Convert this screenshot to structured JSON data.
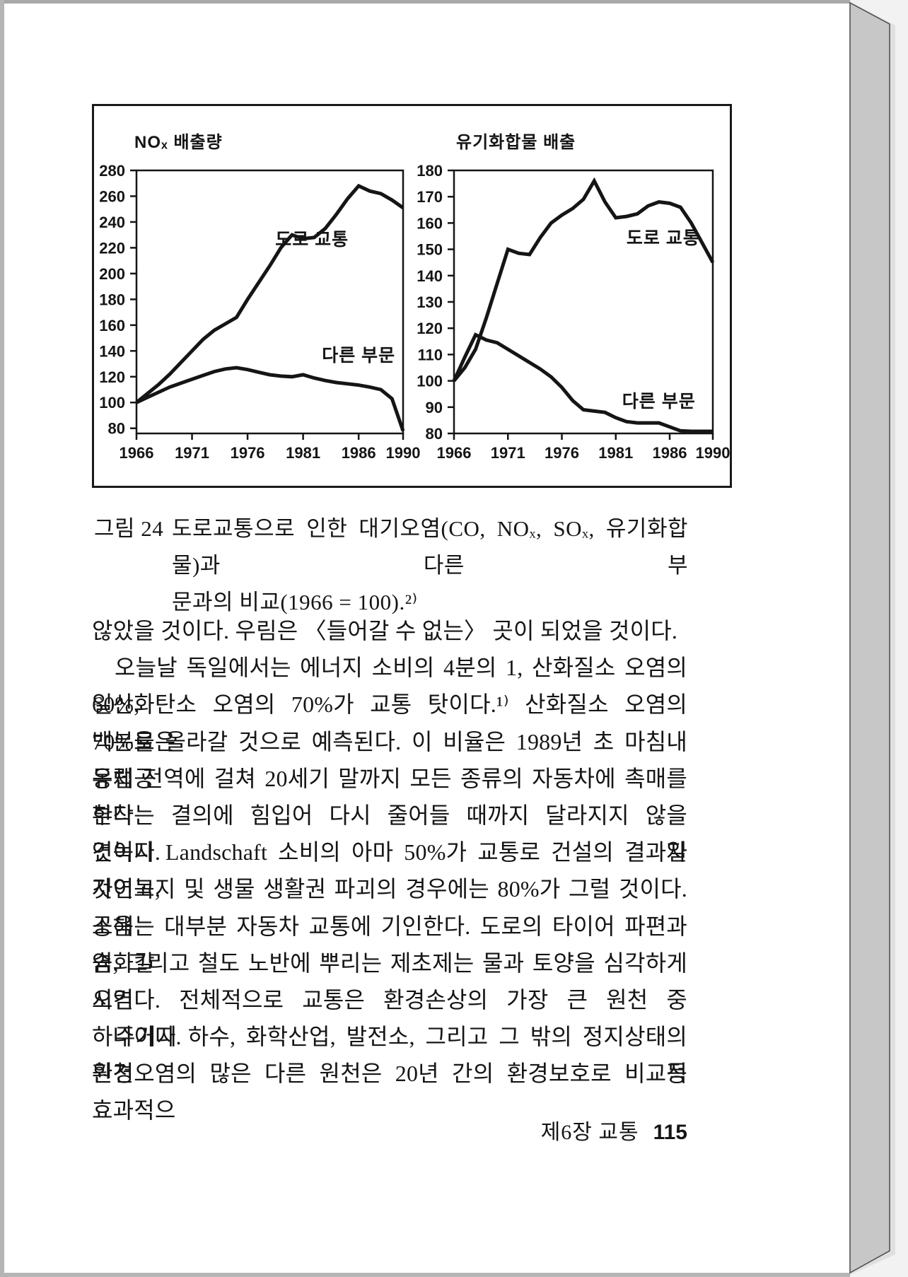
{
  "theme": {
    "background": "#f2f2f3",
    "paper": "#ffffff",
    "ink": "#151515",
    "page_edge": "#c7c7c8"
  },
  "figure": {
    "caption_label": "그림 24",
    "caption_lines": [
      "도로교통으로 인한 대기오염(CO, NOₓ, SOₓ, 유기화합물)과 다른 부",
      "문과의 비교(1966 = 100).²⁾"
    ]
  },
  "chart_data": [
    {
      "type": "line",
      "title": "NOₓ 배출량",
      "x": [
        1966,
        1967,
        1968,
        1969,
        1970,
        1971,
        1972,
        1973,
        1974,
        1975,
        1976,
        1977,
        1978,
        1979,
        1980,
        1981,
        1982,
        1983,
        1984,
        1985,
        1986,
        1987,
        1988,
        1989,
        1990
      ],
      "xlim": [
        1966,
        1990
      ],
      "x_ticks": [
        1966,
        1971,
        1976,
        1981,
        1986,
        1990
      ],
      "ylim": [
        76,
        280
      ],
      "y_ticks": [
        80,
        100,
        120,
        140,
        160,
        180,
        200,
        220,
        240,
        260,
        280
      ],
      "grid": false,
      "legend": "inline-labels",
      "index_base": "1966 = 100",
      "series": [
        {
          "name": "도로 교통",
          "values": [
            100,
            107,
            114,
            122,
            131,
            140,
            149,
            156,
            161,
            166,
            180,
            193,
            206,
            220,
            230,
            227,
            228,
            235,
            246,
            258,
            268,
            264,
            262,
            257,
            251
          ],
          "label_at": {
            "x": 1981.8,
            "y": 222
          }
        },
        {
          "name": "다른 부문",
          "values": [
            100,
            104,
            108,
            112,
            115,
            118,
            121,
            124,
            126,
            127,
            125.5,
            123.5,
            121.5,
            120.5,
            120,
            121.5,
            119,
            117,
            115.5,
            114.5,
            113.5,
            112,
            110,
            103,
            78
          ],
          "label_at": {
            "x": 1986,
            "y": 132
          }
        }
      ]
    },
    {
      "type": "line",
      "title": "유기화합물 배출",
      "x": [
        1966,
        1967,
        1968,
        1969,
        1970,
        1971,
        1972,
        1973,
        1974,
        1975,
        1976,
        1977,
        1978,
        1979,
        1980,
        1981,
        1982,
        1983,
        1984,
        1985,
        1986,
        1987,
        1988,
        1989,
        1990
      ],
      "xlim": [
        1966,
        1990
      ],
      "x_ticks": [
        1966,
        1971,
        1976,
        1981,
        1986,
        1990
      ],
      "ylim": [
        80,
        180
      ],
      "y_ticks": [
        80,
        90,
        100,
        110,
        120,
        130,
        140,
        150,
        160,
        170,
        180
      ],
      "grid": false,
      "legend": "inline-labels",
      "index_base": "1966 = 100",
      "series": [
        {
          "name": "도로 교통",
          "values": [
            100,
            105,
            112,
            124,
            137,
            150,
            148.5,
            148,
            154.5,
            160,
            163,
            165.5,
            169,
            176,
            168,
            162,
            162.5,
            163.5,
            166.5,
            168,
            167.5,
            166,
            160,
            152.5,
            145
          ],
          "label_at": {
            "x": 1985.4,
            "y": 152
          }
        },
        {
          "name": "다른 부문",
          "values": [
            100,
            109,
            117.5,
            115.5,
            114.5,
            112,
            109.5,
            107,
            104.5,
            101.5,
            97.5,
            92.5,
            89,
            88.5,
            88,
            86,
            84.5,
            84,
            84,
            84,
            82.5,
            81,
            80.8,
            80.8,
            80.8
          ],
          "label_at": {
            "x": 1985,
            "y": 90
          }
        }
      ]
    }
  ],
  "body": {
    "lines": [
      {
        "text": "않았을 것이다. 우림은 〈들어갈 수 없는〉 곳이 되었을 것이다.",
        "indent": false,
        "para_end": true
      },
      {
        "text": "오늘날 독일에서는 에너지 소비의 4분의 1, 산화질소 오염의 60%,",
        "indent": true,
        "para_end": false
      },
      {
        "text": "일산화탄소 오염의 70%가 교통 탓이다.¹⁾ 산화질소 오염의 백분율은",
        "indent": false,
        "para_end": false
      },
      {
        "text": "70%로 올라갈 것으로 예측된다. 이 비율은 1989년 초 마침내 유럽공",
        "indent": false,
        "para_end": false
      },
      {
        "text": "동체 전역에 걸쳐 20세기 말까지 모든 종류의 자동차에 촉매를 부착",
        "indent": false,
        "para_end": false
      },
      {
        "text": "한다는 결의에 힘입어 다시 줄어들 때까지 달라지지 않을 것이다. 자",
        "indent": false,
        "para_end": false
      },
      {
        "text": "연녹지 Landschaft 소비의 아마 50%가 교통로 건설의 결과일 것이고,",
        "indent": false,
        "para_end": false
      },
      {
        "text": "자연녹지 및 생물 생활권 파괴의 경우에는 80%가 그럴 것이다. 소음",
        "indent": false,
        "para_end": false
      },
      {
        "text": "공해는 대부분 자동차 교통에 기인한다. 도로의 타이어 파편과 염화칼",
        "indent": false,
        "para_end": false
      },
      {
        "text": "슘, 그리고 철도 노반에 뿌리는 제초제는 물과 토양을 심각하게 오염",
        "indent": false,
        "para_end": false
      },
      {
        "text": "시킨다. 전체적으로 교통은 환경손상의 가장 큰 원천 중 하나이다.",
        "indent": false,
        "para_end": true
      },
      {
        "text": "주거지 하수, 화학산업, 발전소, 그리고 그 밖의 정지상태의 원천 등",
        "indent": true,
        "para_end": false
      },
      {
        "text": "환경오염의 많은 다른 원천은 20년 간의 환경보호로 비교적 효과적으",
        "indent": false,
        "para_end": false
      }
    ]
  },
  "page": {
    "footer": {
      "chapter": "제6장 교통",
      "page_number": "115"
    }
  }
}
